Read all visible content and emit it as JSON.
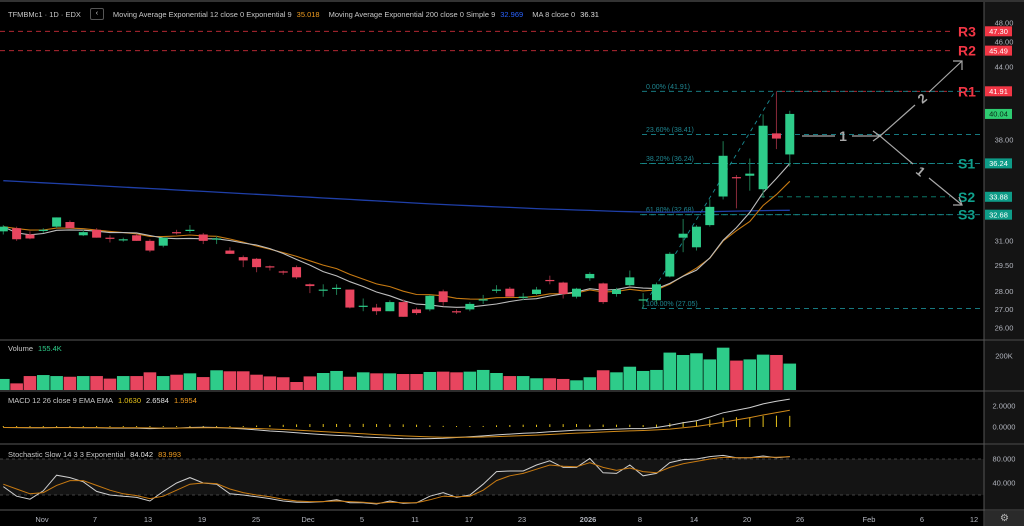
{
  "header": {
    "symbol": "TFMBMc1 · 1D · EDX",
    "collapse_icon": "chevron-left-icon",
    "collapse_glyph": "‹",
    "indicators": [
      {
        "label": "Moving Average Exponential 12 close 0 Exponential 9",
        "value": "35.018",
        "color": "#f29d1f"
      },
      {
        "label": "Moving Average Exponential 200 close 0 Simple 9",
        "value": "32.969",
        "color": "#2962ff"
      },
      {
        "label": "MA 8 close 0",
        "value": "36.31",
        "color": "#d9d9d9"
      }
    ]
  },
  "volume_legend": {
    "label": "Volume",
    "value": "155.4K",
    "color": "#2ecc8a"
  },
  "macd_legend": {
    "label": "MACD 12 26 close 9 EMA EMA",
    "hist": "1.0630",
    "macd": "2.6584",
    "signal": "1.5954"
  },
  "stoch_legend": {
    "label": "Stochastic Slow 14 3 3 Exponential",
    "k": "84.042",
    "d": "83.993"
  },
  "colors": {
    "up": "#2ecc8a",
    "down": "#e8455f",
    "ema12": "#c77a12",
    "ma8": "#bdbdbd",
    "ema200": "#1f3fa8",
    "fib": "#1a8a92",
    "resistance": "#f23645",
    "support": "#10a08c",
    "macd": "#cfcfcf",
    "signal": "#d08a1a",
    "hist": "#e6c21a"
  },
  "chart_data": {
    "type": "candlestick",
    "price_scale": "log",
    "price_ticks": [
      "48.00",
      "46.00",
      "44.00",
      "38.00",
      "31.00",
      "29.50",
      "28.00",
      "27.00",
      "26.00"
    ],
    "x_ticks": [
      "Nov",
      "7",
      "13",
      "19",
      "25",
      "Dec",
      "5",
      "11",
      "17",
      "23",
      "2026",
      "8",
      "14",
      "20",
      "26",
      "Feb",
      "6",
      "12"
    ],
    "ohlc": [
      [
        31.6,
        32.0,
        31.4,
        31.9
      ],
      [
        31.8,
        31.9,
        31.0,
        31.1
      ],
      [
        31.4,
        31.6,
        31.1,
        31.15
      ],
      [
        31.65,
        31.8,
        31.5,
        31.7
      ],
      [
        31.9,
        32.5,
        31.8,
        32.5
      ],
      [
        32.2,
        32.3,
        31.8,
        31.8
      ],
      [
        31.35,
        31.7,
        31.3,
        31.55
      ],
      [
        31.7,
        31.8,
        31.2,
        31.2
      ],
      [
        31.2,
        31.35,
        30.9,
        31.15
      ],
      [
        31.05,
        31.2,
        30.95,
        31.1
      ],
      [
        31.35,
        31.45,
        31.0,
        31.0
      ],
      [
        31.0,
        31.1,
        30.3,
        30.4
      ],
      [
        30.7,
        31.2,
        30.6,
        31.2
      ],
      [
        31.55,
        31.7,
        31.4,
        31.5
      ],
      [
        31.65,
        32.0,
        31.5,
        31.7
      ],
      [
        31.4,
        31.5,
        30.8,
        31.0
      ],
      [
        31.1,
        31.3,
        30.8,
        31.15
      ],
      [
        30.4,
        30.6,
        30.2,
        30.2
      ],
      [
        30.0,
        30.1,
        29.4,
        29.8
      ],
      [
        29.9,
        29.95,
        29.1,
        29.4
      ],
      [
        29.45,
        29.5,
        29.2,
        29.4
      ],
      [
        29.15,
        29.2,
        28.95,
        29.1
      ],
      [
        29.4,
        29.5,
        28.7,
        28.8
      ],
      [
        28.4,
        28.45,
        27.9,
        28.3
      ],
      [
        28.05,
        28.4,
        27.7,
        28.1
      ],
      [
        28.15,
        28.4,
        27.8,
        28.2
      ],
      [
        28.1,
        28.1,
        27.05,
        27.1
      ],
      [
        27.15,
        27.6,
        26.9,
        27.2
      ],
      [
        27.1,
        27.3,
        26.7,
        26.9
      ],
      [
        26.9,
        27.5,
        26.9,
        27.4
      ],
      [
        27.4,
        27.55,
        26.6,
        26.6
      ],
      [
        27.0,
        27.1,
        26.7,
        26.8
      ],
      [
        27.0,
        27.8,
        26.9,
        27.75
      ],
      [
        28.0,
        28.1,
        27.2,
        27.4
      ],
      [
        26.9,
        27.0,
        26.75,
        26.85
      ],
      [
        27.0,
        27.4,
        26.9,
        27.3
      ],
      [
        27.5,
        27.8,
        27.3,
        27.55
      ],
      [
        28.05,
        28.35,
        27.9,
        28.1
      ],
      [
        28.15,
        28.25,
        27.7,
        27.7
      ],
      [
        27.65,
        27.9,
        27.5,
        27.7
      ],
      [
        27.85,
        28.25,
        27.8,
        28.1
      ],
      [
        28.65,
        28.9,
        28.4,
        28.6
      ],
      [
        28.5,
        28.55,
        27.6,
        27.85
      ],
      [
        27.7,
        28.2,
        27.6,
        28.15
      ],
      [
        28.75,
        29.1,
        28.6,
        29.0
      ],
      [
        28.45,
        28.5,
        27.3,
        27.4
      ],
      [
        27.85,
        28.2,
        27.7,
        28.1
      ],
      [
        28.35,
        29.2,
        28.3,
        28.8
      ],
      [
        27.5,
        27.9,
        27.05,
        27.55
      ],
      [
        27.5,
        28.5,
        27.3,
        28.4
      ],
      [
        28.85,
        30.3,
        28.8,
        30.2
      ],
      [
        31.2,
        32.4,
        30.3,
        31.45
      ],
      [
        30.6,
        32.0,
        30.4,
        31.9
      ],
      [
        32.0,
        33.7,
        31.9,
        33.2
      ],
      [
        33.9,
        37.9,
        33.7,
        36.8
      ],
      [
        35.25,
        35.4,
        33.1,
        35.2
      ],
      [
        35.35,
        36.6,
        34.3,
        35.5
      ],
      [
        34.4,
        40.0,
        33.8,
        39.1
      ],
      [
        38.5,
        41.91,
        37.3,
        38.1
      ],
      [
        36.9,
        40.3,
        36.0,
        40.04
      ]
    ],
    "ema200": [
      35.0,
      34.95,
      34.9,
      34.85,
      34.8,
      34.75,
      34.7,
      34.65,
      34.6,
      34.55,
      34.5,
      34.45,
      34.4,
      34.35,
      34.3,
      34.25,
      34.2,
      34.15,
      34.1,
      34.05,
      34.0,
      33.95,
      33.9,
      33.85,
      33.8,
      33.75,
      33.7,
      33.65,
      33.6,
      33.55,
      33.5,
      33.45,
      33.4,
      33.36,
      33.32,
      33.28,
      33.24,
      33.2,
      33.16,
      33.12,
      33.08,
      33.05,
      33.02,
      32.99,
      32.96,
      32.93,
      32.9,
      32.88,
      32.86,
      32.85,
      32.85,
      32.86,
      32.87,
      32.88,
      32.9,
      32.92,
      32.93,
      32.95,
      32.96,
      32.969
    ],
    "price_labels": [
      {
        "value": 47.3,
        "text": "47.30",
        "kind": "resistance"
      },
      {
        "value": 45.49,
        "text": "45.49",
        "kind": "resistance"
      },
      {
        "value": 41.91,
        "text": "41.91",
        "kind": "resistance"
      },
      {
        "value": 40.04,
        "text": "40.04",
        "kind": "last"
      },
      {
        "value": 36.24,
        "text": "36.24",
        "kind": "support"
      },
      {
        "value": 33.88,
        "text": "33.88",
        "kind": "support"
      },
      {
        "value": 32.68,
        "text": "32.68",
        "kind": "support"
      }
    ],
    "levels": [
      {
        "name": "R3",
        "value": 47.3,
        "kind": "resistance"
      },
      {
        "name": "R2",
        "value": 45.49,
        "kind": "resistance"
      },
      {
        "name": "R1",
        "value": 41.91,
        "kind": "resistance"
      },
      {
        "name": "S1",
        "value": 36.24,
        "kind": "support"
      },
      {
        "name": "S2",
        "value": 33.88,
        "kind": "support"
      },
      {
        "name": "S3",
        "value": 32.68,
        "kind": "support"
      }
    ],
    "fib": [
      {
        "value": 41.91,
        "text": "0.00% (41.91)"
      },
      {
        "value": 38.41,
        "text": "23.60% (38.41)"
      },
      {
        "value": 36.24,
        "text": "38.20% (36.24)"
      },
      {
        "value": 32.68,
        "text": "61.80% (32.68)"
      },
      {
        "value": 27.05,
        "text": "100.00% (27.05)"
      }
    ],
    "projection_labels": [
      "1",
      "2",
      "1"
    ],
    "volume": [
      65,
      39,
      82,
      88,
      82,
      78,
      82,
      82,
      67,
      82,
      82,
      104,
      82,
      90,
      98,
      76,
      116,
      110,
      110,
      90,
      80,
      75,
      47,
      80,
      100,
      112,
      78,
      104,
      98,
      98,
      94,
      94,
      106,
      108,
      104,
      108,
      118,
      100,
      82,
      82,
      69,
      69,
      65,
      57,
      75,
      116,
      104,
      137,
      112,
      118,
      220,
      206,
      216,
      180,
      249,
      173,
      180,
      208,
      206,
      155.4
    ],
    "volume_ticks": [
      "200K"
    ],
    "macd": [
      -0.05,
      -0.06,
      -0.08,
      -0.08,
      -0.05,
      -0.05,
      -0.07,
      -0.08,
      -0.1,
      -0.1,
      -0.1,
      -0.15,
      -0.12,
      -0.1,
      -0.05,
      -0.03,
      -0.05,
      -0.1,
      -0.18,
      -0.28,
      -0.38,
      -0.45,
      -0.55,
      -0.65,
      -0.72,
      -0.8,
      -0.85,
      -0.95,
      -1.0,
      -1.05,
      -1.1,
      -1.12,
      -1.1,
      -1.08,
      -1.0,
      -0.92,
      -0.85,
      -0.75,
      -0.68,
      -0.6,
      -0.55,
      -0.45,
      -0.38,
      -0.3,
      -0.3,
      -0.25,
      -0.2,
      -0.15,
      -0.15,
      -0.05,
      0.15,
      0.4,
      0.6,
      0.95,
      1.35,
      1.6,
      1.85,
      2.2,
      2.45,
      2.6584
    ],
    "signal": [
      -0.05,
      -0.05,
      -0.06,
      -0.06,
      -0.06,
      -0.06,
      -0.06,
      -0.06,
      -0.07,
      -0.08,
      -0.08,
      -0.09,
      -0.1,
      -0.1,
      -0.09,
      -0.08,
      -0.07,
      -0.08,
      -0.1,
      -0.14,
      -0.19,
      -0.24,
      -0.3,
      -0.37,
      -0.44,
      -0.51,
      -0.58,
      -0.65,
      -0.72,
      -0.79,
      -0.85,
      -0.9,
      -0.94,
      -0.97,
      -0.98,
      -0.97,
      -0.95,
      -0.91,
      -0.87,
      -0.82,
      -0.77,
      -0.71,
      -0.65,
      -0.58,
      -0.53,
      -0.48,
      -0.42,
      -0.37,
      -0.33,
      -0.28,
      -0.2,
      -0.08,
      0.06,
      0.24,
      0.46,
      0.68,
      0.9,
      1.14,
      1.37,
      1.5954
    ],
    "macd_ticks": [
      "2.0000",
      "0.0000"
    ],
    "stoch_k": [
      34,
      18,
      13,
      27,
      53,
      49,
      42,
      26,
      20,
      18,
      16,
      10,
      26,
      40,
      49,
      40,
      38,
      22,
      20,
      17,
      14,
      10,
      8,
      8,
      9,
      12,
      7,
      7,
      5,
      10,
      6,
      7,
      18,
      24,
      16,
      20,
      38,
      59,
      60,
      60,
      70,
      77,
      66,
      66,
      81,
      57,
      56,
      70,
      52,
      56,
      74,
      79,
      80,
      84,
      86,
      82,
      82,
      85,
      82,
      84.042
    ],
    "stoch_d": [
      38,
      30,
      22,
      24,
      36,
      44,
      44,
      36,
      28,
      22,
      19,
      14,
      18,
      28,
      38,
      40,
      39,
      30,
      24,
      20,
      17,
      13,
      10,
      9,
      9,
      10,
      9,
      8,
      6,
      8,
      7,
      7,
      12,
      18,
      17,
      18,
      28,
      44,
      52,
      56,
      63,
      70,
      68,
      67,
      74,
      66,
      61,
      65,
      59,
      57,
      66,
      72,
      76,
      80,
      83,
      82,
      82,
      83,
      83,
      83.993
    ],
    "stoch_ticks": [
      "80.000",
      "40.000"
    ],
    "stoch_bands": [
      80,
      20
    ]
  },
  "footer": {
    "settings_icon": "gear-icon",
    "settings_glyph": "⚙"
  }
}
